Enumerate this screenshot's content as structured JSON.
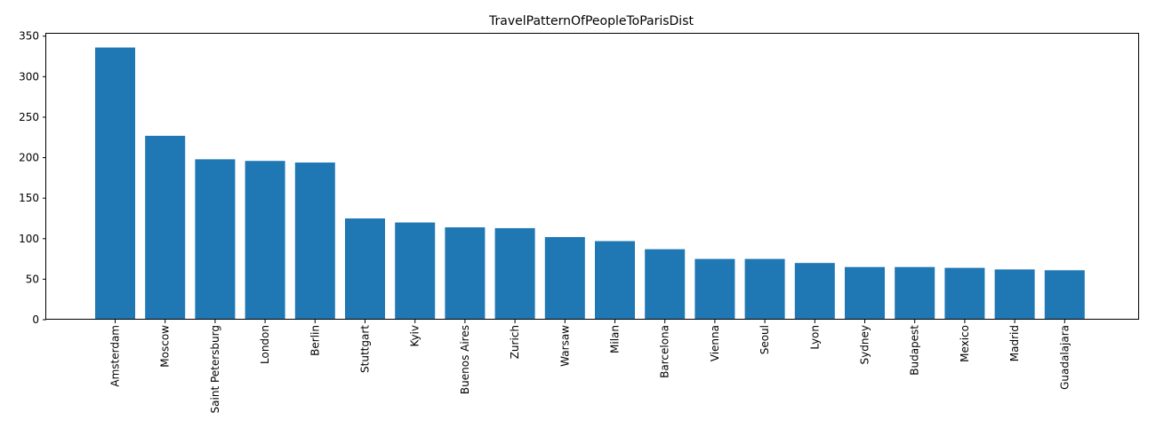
{
  "chart_data": {
    "type": "bar",
    "title": "TravelPatternOfPeopleToParisDist",
    "xlabel": "",
    "ylabel": "",
    "ylim": [
      0,
      353
    ],
    "yticks": [
      0,
      50,
      100,
      150,
      200,
      250,
      300,
      350
    ],
    "bar_color": "#1f77b4",
    "grid": false,
    "categories": [
      "Amsterdam",
      "Moscow",
      "Saint Petersburg",
      "London",
      "Berlin",
      "Stuttgart",
      "Kyiv",
      "Buenos Aires",
      "Zurich",
      "Warsaw",
      "Milan",
      "Barcelona",
      "Vienna",
      "Seoul",
      "Lyon",
      "Sydney",
      "Budapest",
      "Mexico",
      "Madrid",
      "Guadalajara"
    ],
    "values": [
      336,
      227,
      198,
      196,
      194,
      125,
      120,
      114,
      113,
      102,
      97,
      87,
      75,
      75,
      70,
      65,
      65,
      64,
      62,
      61
    ]
  }
}
